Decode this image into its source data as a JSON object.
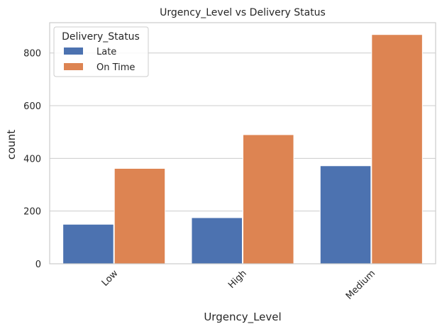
{
  "chart_data": {
    "type": "bar",
    "title": "Urgency_Level vs Delivery Status",
    "xlabel": "Urgency_Level",
    "ylabel": "count",
    "categories": [
      "Low",
      "High",
      "Medium"
    ],
    "series": [
      {
        "name": "Late",
        "values": [
          150,
          175,
          372
        ],
        "color": "#4c72b0"
      },
      {
        "name": "On Time",
        "values": [
          362,
          490,
          870
        ],
        "color": "#dd8452"
      }
    ],
    "ylim": [
      0,
      915
    ],
    "yticks": [
      0,
      200,
      400,
      600,
      800
    ],
    "ytick_labels": [
      "0",
      "200",
      "400",
      "600",
      "800"
    ],
    "grid": true,
    "legend": {
      "title": "Delivery_Status",
      "placement": "top-left"
    }
  }
}
